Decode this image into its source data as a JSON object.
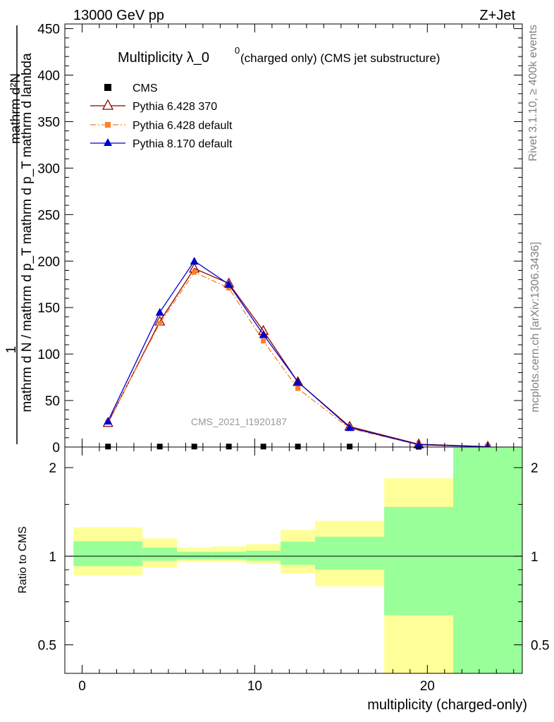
{
  "header": {
    "left": "13000 GeV pp",
    "right": "Z+Jet"
  },
  "side_labels": {
    "rivet": "Rivet 3.1.10, ≥ 400k events",
    "mcplots": "mcplots.cern.ch [arXiv:1306.3436]"
  },
  "watermark": "CMS_2021_I1920187",
  "colors": {
    "cms": "#000000",
    "py6_370": "#8b0000",
    "py6_default": "#ff7f27",
    "py8": "#0000cc",
    "band_inner": "#99ff99",
    "band_outer": "#ffff99"
  },
  "chart_data": [
    {
      "type": "line",
      "title": "Multiplicity λ_0",
      "title_sup": "0",
      "title_suffix": "(charged only) (CMS jet substructure)",
      "ylabel_numerator": "mathrm d²N",
      "ylabel_denominator": "mathrm d N / mathrm d p_T mathrm d p_T mathrm d lambda",
      "ylabel_one": "1",
      "ylim": [
        0,
        455
      ],
      "xlim": [
        -1,
        25.5
      ],
      "yticks": [
        0,
        50,
        100,
        150,
        200,
        250,
        300,
        350,
        400,
        450
      ],
      "legend_position": "top-left",
      "series": [
        {
          "name": "CMS",
          "marker": "square",
          "x": [
            1.5,
            4.5,
            6.5,
            8.5,
            10.5,
            12.5,
            15.5,
            19.5,
            23.5
          ],
          "y": [
            0.5,
            0.5,
            0.5,
            0.5,
            0.5,
            0.5,
            0.5,
            0.3,
            0.1
          ]
        },
        {
          "name": "Pythia 6.428 370",
          "marker": "open-triangle",
          "line": "solid",
          "x": [
            1.5,
            4.5,
            6.5,
            8.5,
            10.5,
            12.5,
            15.5,
            19.5,
            23.5
          ],
          "y": [
            26,
            135,
            192,
            176,
            125,
            70,
            22,
            3,
            0.5
          ]
        },
        {
          "name": "Pythia 6.428 default",
          "marker": "square",
          "line": "dashdot",
          "x": [
            1.5,
            4.5,
            6.5,
            8.5,
            10.5,
            12.5,
            15.5,
            19.5,
            23.5
          ],
          "y": [
            27,
            133,
            188,
            171,
            114,
            63,
            20,
            2.5,
            0.4
          ]
        },
        {
          "name": "Pythia 8.170 default",
          "marker": "triangle",
          "line": "solid",
          "x": [
            1.5,
            4.5,
            6.5,
            8.5,
            10.5,
            12.5,
            15.5,
            19.5,
            23.5
          ],
          "y": [
            28,
            145,
            200,
            175,
            121,
            70,
            21,
            2.5,
            0.3
          ]
        }
      ]
    },
    {
      "type": "area",
      "ylabel": "Ratio to CMS",
      "xlabel": "multiplicity (charged-only)",
      "xticks": [
        0,
        10,
        20
      ],
      "yticks": [
        0.5,
        1,
        2
      ],
      "ylim": [
        0.4,
        2.35
      ],
      "bins": [
        {
          "lo": -0.5,
          "hi": 3.5,
          "inner": [
            0.925,
            1.125
          ],
          "outer": [
            0.86,
            1.255
          ]
        },
        {
          "lo": 3.5,
          "hi": 5.5,
          "inner": [
            0.965,
            1.07
          ],
          "outer": [
            0.915,
            1.15
          ]
        },
        {
          "lo": 5.5,
          "hi": 7.5,
          "inner": [
            0.975,
            1.035
          ],
          "outer": [
            0.955,
            1.07
          ]
        },
        {
          "lo": 7.5,
          "hi": 9.5,
          "inner": [
            0.975,
            1.035
          ],
          "outer": [
            0.955,
            1.08
          ]
        },
        {
          "lo": 9.5,
          "hi": 11.5,
          "inner": [
            0.965,
            1.045
          ],
          "outer": [
            0.94,
            1.1
          ]
        },
        {
          "lo": 11.5,
          "hi": 13.5,
          "inner": [
            0.935,
            1.12
          ],
          "outer": [
            0.875,
            1.23
          ]
        },
        {
          "lo": 13.5,
          "hi": 17.5,
          "inner": [
            0.9,
            1.165
          ],
          "outer": [
            0.79,
            1.32
          ]
        },
        {
          "lo": 17.5,
          "hi": 21.5,
          "inner": [
            0.63,
            1.47
          ],
          "outer": [
            0.4,
            1.84
          ]
        },
        {
          "lo": 21.5,
          "hi": 25.5,
          "inner": [
            0.4,
            2.35
          ],
          "outer": [
            0.4,
            2.35
          ]
        }
      ]
    }
  ]
}
